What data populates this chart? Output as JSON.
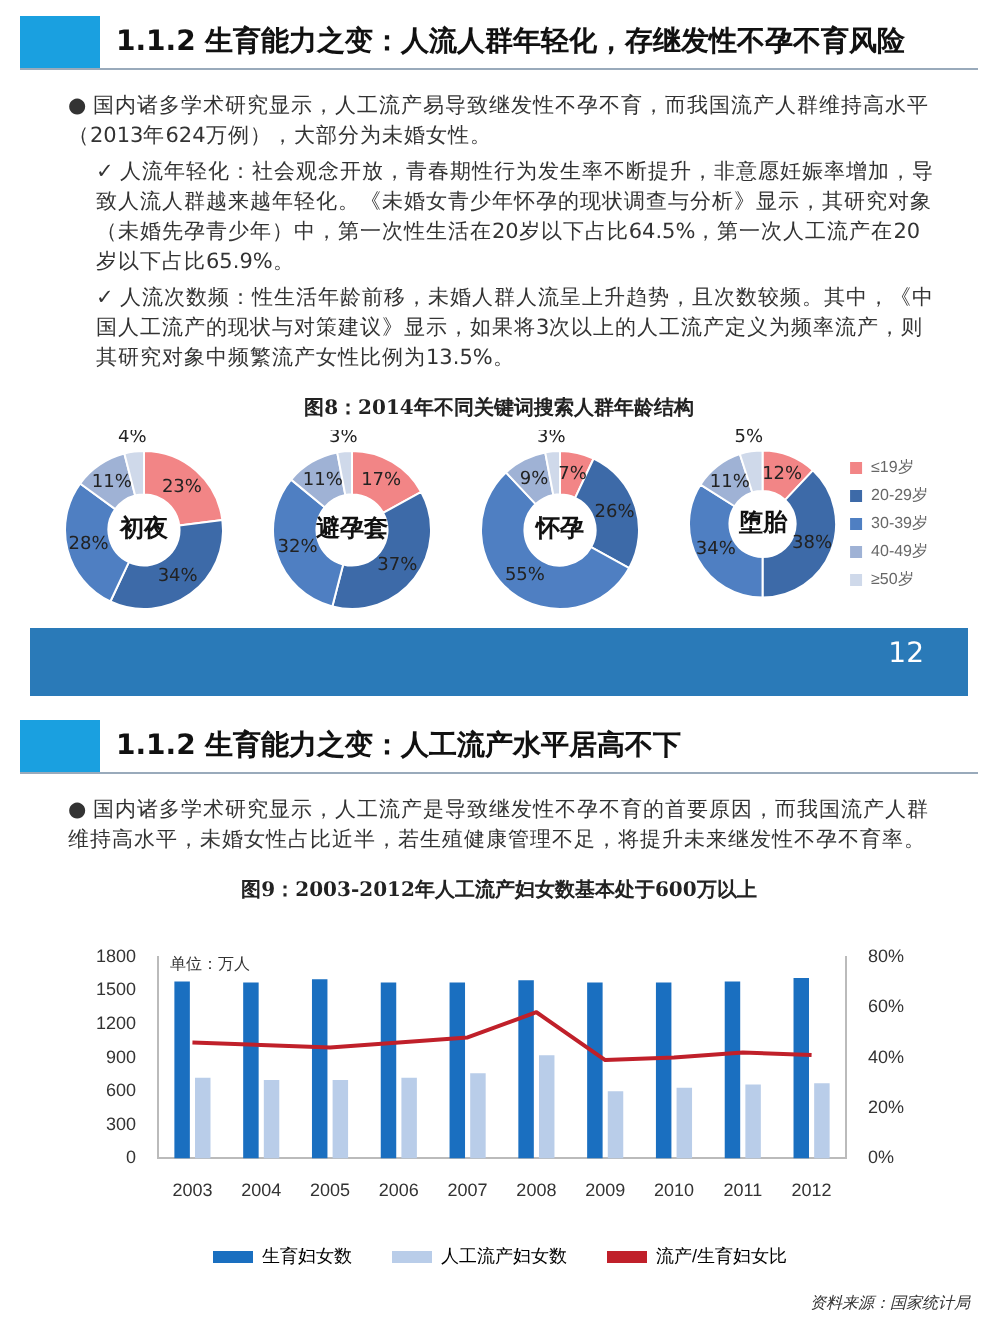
{
  "chart_data": [
    {
      "type": "other",
      "title": "1.1.2 生育能力之变：人流人群年轻化，存继发性不孕不育风险",
      "subtitle": "图8：2014年不同关键词搜索人群年龄结构",
      "annotations": [
        "● 国内诸多学术研究显示，人工流产易导致继发性不孕不育，而我国流产人群维持高水平（2013年624万例），大部分为未婚女性。",
        "✓ 人流年轻化：社会观念开放，青春期性行为发生率不断提升，非意愿妊娠率增加，导致人流人群越来越年轻化。《未婚女青少年怀孕的现状调查与分析》显示，其研究对象（未婚先孕青少年）中，第一次性生活在20岁以下占比64.5%，第一次人工流产在20岁以下占比65.9%。",
        "✓ 人流次数频：性生活年龄前移，未婚人群人流呈上升趋势，且次数较频。其中，《中国人工流产的现状与对策建议》显示，如果将3次以上的人工流产定义为频率流产，则其研究对象中频繁流产女性比例为13.5%。"
      ]
    },
    {
      "type": "donut",
      "title": "初夜",
      "categories": [
        null,
        null,
        null,
        null,
        null
      ],
      "values": [
        23,
        34,
        28,
        11,
        4
      ],
      "value_labels": [
        "23%",
        "34%",
        "28%",
        "11%",
        "4%"
      ],
      "colors": [
        "#f28586",
        "#3d6aa8",
        "#4f7fc2",
        "#9fb2d5",
        "#cfd9ea"
      ]
    },
    {
      "type": "donut",
      "title": "避孕套",
      "categories": [
        null,
        null,
        null,
        null,
        null
      ],
      "values": [
        17,
        37,
        32,
        11,
        3
      ],
      "value_labels": [
        "17%",
        "37%",
        "32%",
        "11%",
        "3%"
      ],
      "colors": [
        "#f28586",
        "#3d6aa8",
        "#4f7fc2",
        "#9fb2d5",
        "#cfd9ea"
      ]
    },
    {
      "type": "donut",
      "title": "怀孕",
      "categories": [
        null,
        null,
        null,
        null,
        null
      ],
      "values": [
        7,
        26,
        55,
        9,
        3
      ],
      "value_labels": [
        "7%",
        "26%",
        "55%",
        "9%",
        "3%"
      ],
      "colors": [
        "#f28586",
        "#3d6aa8",
        "#4f7fc2",
        "#9fb2d5",
        "#cfd9ea"
      ]
    },
    {
      "type": "donut",
      "title": "堕胎",
      "categories": [
        "≤19岁",
        "20-29岁",
        "30-39岁",
        "40-49岁",
        "≥50岁"
      ],
      "values": [
        12,
        38,
        34,
        11,
        5
      ],
      "value_labels": [
        "12%",
        "38%",
        "34%",
        "11%",
        "5%"
      ],
      "colors": [
        "#f28586",
        "#3d6aa8",
        "#4f7fc2",
        "#9fb2d5",
        "#cfd9ea"
      ],
      "legend": "right"
    },
    {
      "type": "other",
      "annotations": [
        "12"
      ]
    },
    {
      "type": "other",
      "title": "1.1.2 生育能力之变：人工流产水平居高不下",
      "subtitle": "图9：2003-2012年人工流产妇女数基本处于600万以上",
      "annotations": [
        "● 国内诸多学术研究显示，人工流产是导致继发性不孕不育的首要原因，而我国流产人群维持高水平，未婚女性占比近半，若生殖健康管理不足，将提升未来继发性不孕不育率。"
      ]
    },
    {
      "type": "bar",
      "ylabel": "单位：万人",
      "categories": [
        "2003",
        "2004",
        "2005",
        "2006",
        "2007",
        "2008",
        "2009",
        "2010",
        "2011",
        "2012"
      ],
      "series": [
        {
          "name": "生育妇女数",
          "color": "#1a6fc0",
          "values": [
            1580,
            1570,
            1600,
            1570,
            1570,
            1590,
            1570,
            1570,
            1580,
            1610
          ]
        },
        {
          "name": "人工流产妇女数",
          "color": "#b9cde9",
          "values": [
            720,
            700,
            700,
            720,
            760,
            920,
            600,
            630,
            660,
            670
          ]
        },
        {
          "name": "流产/生育妇女比",
          "color": "#c0202a",
          "type": "line",
          "axis": "y2",
          "values": [
            46,
            45,
            44,
            46,
            48,
            58,
            39,
            40,
            42,
            41
          ]
        }
      ],
      "ylim": [
        0,
        1800
      ],
      "yticks": [
        0,
        300,
        600,
        900,
        1200,
        1500,
        1800
      ],
      "y2lim": [
        0,
        80
      ],
      "y2ticks": [
        {
          "value": 0,
          "label": "0%"
        },
        {
          "value": 20,
          "label": "20%"
        },
        {
          "value": 40,
          "label": "40%"
        },
        {
          "value": 60,
          "label": "60%"
        },
        {
          "value": 80,
          "label": "80%"
        }
      ],
      "marker": "none",
      "legend": "bottom",
      "grid": false,
      "annotations": [
        "资料来源：国家统计局"
      ]
    }
  ]
}
